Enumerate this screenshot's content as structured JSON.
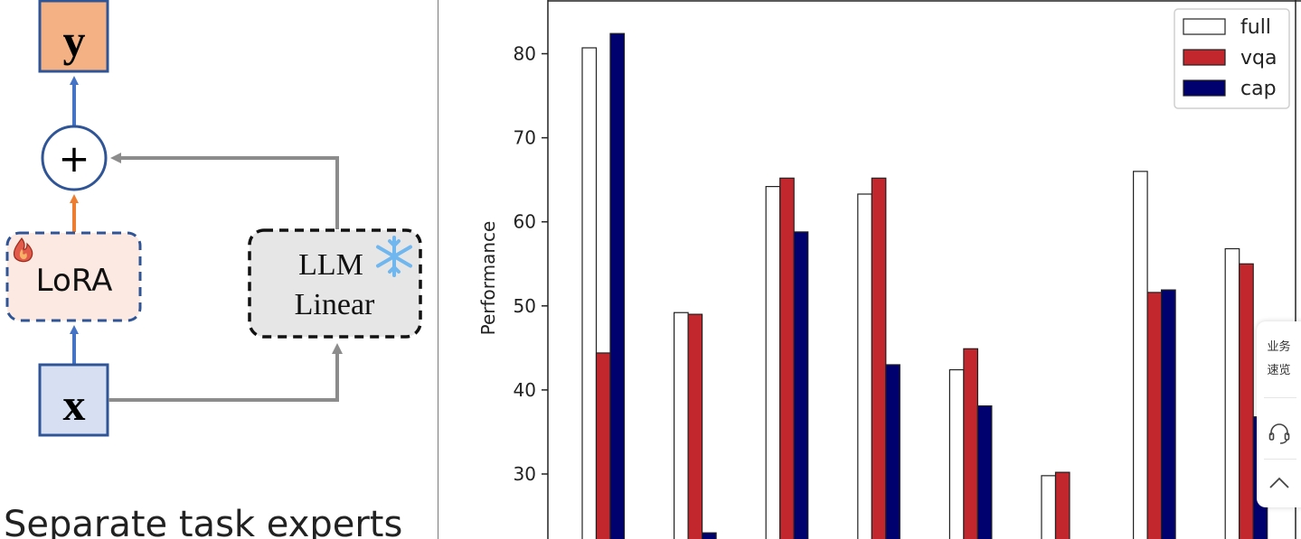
{
  "diagram": {
    "output_label": "y",
    "input_label": "x",
    "sum_symbol": "+",
    "lora_label": "LoRA",
    "llm_line1": "LLM",
    "llm_line2": "Linear",
    "caption": "Separate task experts",
    "icons": [
      "fire-icon",
      "snowflake-icon"
    ]
  },
  "chart_data": {
    "type": "bar",
    "ylabel": "Performance",
    "yticks": [
      30,
      40,
      50,
      60,
      70,
      80
    ],
    "ylim_visible": [
      22.3,
      86.3
    ],
    "legend_position": "top-right",
    "series": [
      {
        "name": "full",
        "color": "#ffffff",
        "values": [
          80.7,
          49.2,
          64.2,
          63.3,
          42.4,
          29.8,
          66.0,
          56.8
        ]
      },
      {
        "name": "vqa",
        "color": "#c1272d",
        "values": [
          44.4,
          49.0,
          65.2,
          65.2,
          44.9,
          30.2,
          51.6,
          55.0
        ]
      },
      {
        "name": "cap",
        "color": "#00006e",
        "values": [
          82.4,
          23.0,
          58.8,
          43.0,
          38.1,
          null,
          51.9,
          36.8
        ]
      }
    ]
  },
  "side_panel": {
    "overview_label": "业务速览",
    "icons": [
      "headset-icon",
      "back-to-top-icon"
    ]
  }
}
